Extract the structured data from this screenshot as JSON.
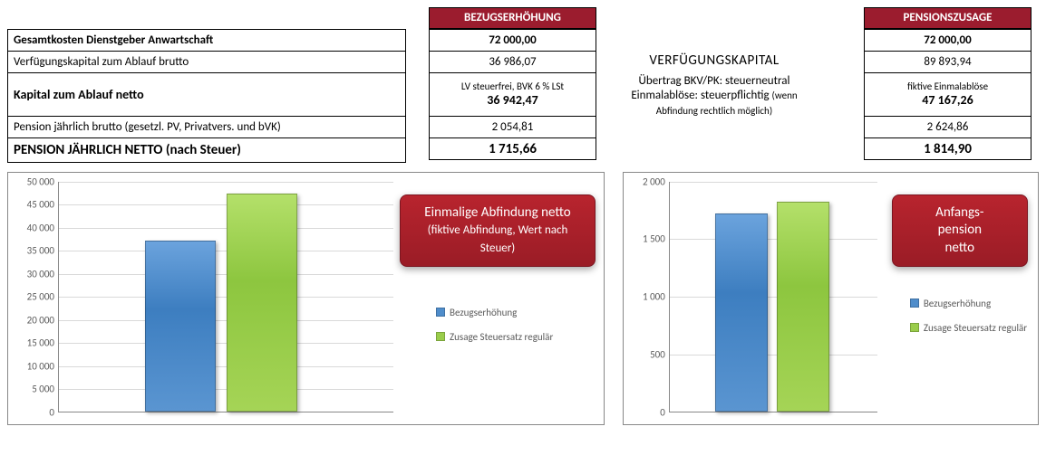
{
  "table_rows": {
    "r1": "Gesamtkosten Dienstgeber Anwartschaft",
    "r2": "Verfügungskapital zum Ablauf brutto",
    "r3": "Kapital zum Ablauf netto",
    "r4": "Pension jährlich brutto (gesetzl. PV, Privatvers. und bVK)",
    "r5": "PENSION JÄHRLICH NETTO (nach Steuer)"
  },
  "col_bezug": {
    "header": "BEZUGSERHÖHUNG",
    "r1": "72 000,00",
    "r2": "36 986,07",
    "r3_note": "LV steuerfrei, BVK 6 % LSt",
    "r3": "36 942,47",
    "r4": "2 054,81",
    "r5": "1 715,66"
  },
  "middle": {
    "title": "VERFÜGUNGSKAPITAL",
    "line1": "Übertrag BKV/PK: steuerneutral",
    "line2a": "Einmalablöse: steuerpflichtig",
    "line2b": "(wenn Abfindung rechtlich möglich)"
  },
  "col_pension": {
    "header": "PENSIONSZUSAGE",
    "r1": "72 000,00",
    "r2": "89 893,94",
    "r3_note": "fiktive Einmalablöse",
    "r3": "47 167,26",
    "r4": "2 624,86",
    "r5": "1 814,90"
  },
  "chart_left": {
    "type": "bar",
    "ymax": 50000,
    "ytick_step": 5000,
    "yticks": [
      "0",
      "5 000",
      "10 000",
      "15 000",
      "20 000",
      "25 000",
      "30 000",
      "35 000",
      "40 000",
      "45 000",
      "50 000"
    ],
    "bar1_value": 36942,
    "bar2_value": 47167,
    "bar1_color": "#4f8dcb",
    "bar2_color": "#9acd4b",
    "overlay_main": "Einmalige Abfindung netto",
    "overlay_sub": "(fiktive Abfindung, Wert nach Steuer)",
    "legend1": "Bezugserhöhung",
    "legend2": "Zusage Steuersatz regulär",
    "grid_color": "#d9d9d9",
    "background": "#ffffff"
  },
  "chart_right": {
    "type": "bar",
    "ymax": 2000,
    "ytick_step": 500,
    "yticks": [
      "0",
      "500",
      "1 000",
      "1 500",
      "2 000"
    ],
    "bar1_value": 1716,
    "bar2_value": 1815,
    "bar1_color": "#4f8dcb",
    "bar2_color": "#9acd4b",
    "overlay_line1": "Anfangs-",
    "overlay_line2": "pension",
    "overlay_line3": "netto",
    "legend1": "Bezugserhöhung",
    "legend2": "Zusage Steuersatz regulär",
    "grid_color": "#d9d9d9",
    "background": "#ffffff"
  }
}
